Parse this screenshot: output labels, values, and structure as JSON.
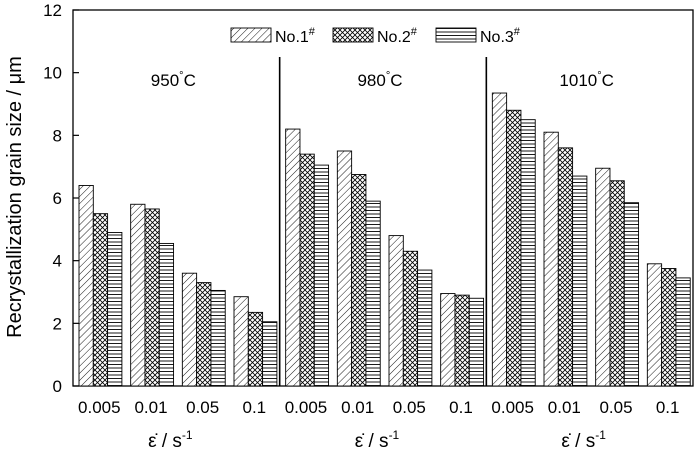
{
  "chart_data": {
    "type": "bar",
    "ylabel": "Recrystallization grain size / μm",
    "ylim": [
      0,
      12
    ],
    "yticks": [
      "0",
      "2",
      "4",
      "6",
      "8",
      "10",
      "12"
    ],
    "legend_position": "top-center",
    "groups": [
      {
        "label": "950",
        "unit": "°C",
        "xunit": "ε̇ / s",
        "xunit_sup": "-1",
        "categories": [
          "0.005",
          "0.01",
          "0.05",
          "0.1"
        ],
        "series": [
          {
            "name": "No.1",
            "values": [
              6.4,
              5.8,
              3.6,
              2.85
            ]
          },
          {
            "name": "No.2",
            "values": [
              5.5,
              5.65,
              3.3,
              2.35
            ]
          },
          {
            "name": "No.3",
            "values": [
              4.9,
              4.55,
              3.05,
              2.05
            ]
          }
        ]
      },
      {
        "label": "980",
        "unit": "°C",
        "xunit": "ε̇ / s",
        "xunit_sup": "-1",
        "categories": [
          "0.005",
          "0.01",
          "0.05",
          "0.1"
        ],
        "series": [
          {
            "name": "No.1",
            "values": [
              8.2,
              7.5,
              4.8,
              2.95
            ]
          },
          {
            "name": "No.2",
            "values": [
              7.4,
              6.75,
              4.3,
              2.9
            ]
          },
          {
            "name": "No.3",
            "values": [
              7.05,
              5.9,
              3.7,
              2.8
            ]
          }
        ]
      },
      {
        "label": "1010",
        "unit": "°C",
        "xunit": "ε̇ / s",
        "xunit_sup": "-1",
        "categories": [
          "0.005",
          "0.01",
          "0.05",
          "0.1"
        ],
        "series": [
          {
            "name": "No.1",
            "values": [
              9.35,
              8.1,
              6.95,
              3.9
            ]
          },
          {
            "name": "No.2",
            "values": [
              8.8,
              7.6,
              6.55,
              3.75
            ]
          },
          {
            "name": "No.3",
            "values": [
              8.5,
              6.7,
              5.85,
              3.45
            ]
          }
        ]
      }
    ],
    "legend": [
      {
        "name": "No.1",
        "sup": "#",
        "pattern": "diagonal"
      },
      {
        "name": "No.2",
        "sup": "#",
        "pattern": "crosshatch"
      },
      {
        "name": "No.3",
        "sup": "#",
        "pattern": "horizontal"
      }
    ]
  }
}
